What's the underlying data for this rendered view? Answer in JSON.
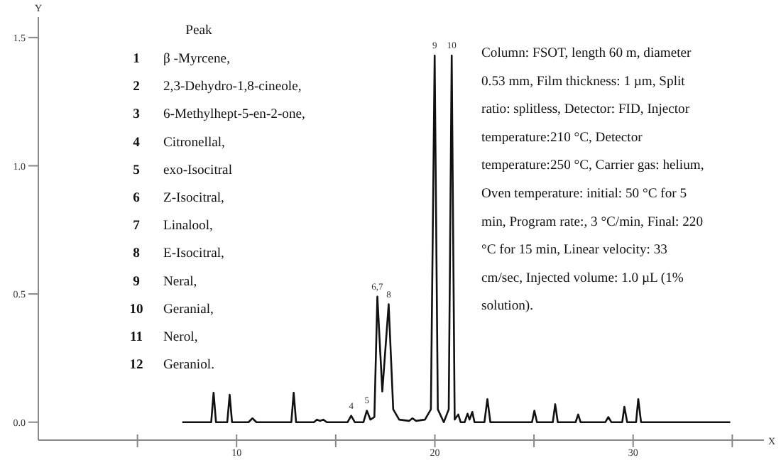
{
  "chart_data": {
    "type": "line",
    "xlabel": "X",
    "ylabel": "Y",
    "xlim": [
      0,
      36.6
    ],
    "ylim": [
      -0.07,
      1.58
    ],
    "xticks": [
      {
        "value": 5,
        "label": null
      },
      10,
      {
        "value": 15,
        "label": null
      },
      20,
      {
        "value": 25,
        "label": null
      },
      30,
      {
        "value": 35,
        "label": null
      }
    ],
    "yticks": [
      {
        "value": 0,
        "label": "0.0"
      },
      0.5,
      {
        "value": 1,
        "label": "1.0"
      },
      1.5
    ],
    "grid": false,
    "marker": "none",
    "line_style": "solid",
    "series": [
      {
        "color": "#111111",
        "x": [
          7.26,
          8.72,
          8.84,
          8.96,
          9.53,
          9.65,
          9.77,
          10.6,
          10.8,
          11.0,
          12.76,
          12.88,
          13.0,
          13.9,
          14.06,
          14.2,
          14.37,
          14.55,
          15.6,
          15.78,
          15.96,
          16.4,
          16.57,
          16.75,
          16.95,
          17.1,
          17.35,
          17.67,
          17.9,
          18.2,
          18.7,
          18.87,
          19.05,
          19.5,
          19.8,
          19.99,
          20.15,
          20.45,
          20.7,
          20.85,
          21.0,
          21.18,
          21.3,
          21.5,
          21.65,
          21.75,
          21.89,
          22.0,
          22.5,
          22.65,
          22.8,
          24.9,
          25.02,
          25.15,
          25.95,
          26.07,
          26.2,
          27.1,
          27.23,
          27.35,
          28.6,
          28.75,
          28.9,
          29.45,
          29.56,
          29.7,
          30.15,
          30.26,
          30.4,
          34.9
        ],
        "values": [
          0,
          0,
          0.115,
          0,
          0,
          0.107,
          0,
          0,
          0.015,
          0,
          0,
          0.115,
          0,
          0,
          0.01,
          0.005,
          0.01,
          0,
          0,
          0.025,
          0,
          0,
          0.045,
          0.01,
          0.02,
          0.49,
          0.12,
          0.46,
          0.05,
          0.01,
          0.005,
          0.015,
          0.005,
          0.01,
          0.05,
          1.43,
          0.05,
          0,
          0.05,
          1.43,
          0.01,
          0.03,
          0,
          0,
          0.033,
          0.01,
          0.04,
          0,
          0,
          0.09,
          0,
          0,
          0.045,
          0,
          0,
          0.07,
          0,
          0,
          0.03,
          0,
          0,
          0.02,
          0,
          0,
          0.06,
          0,
          0,
          0.09,
          0,
          0
        ]
      }
    ],
    "annotations": [
      "Peak",
      "1 β -Myrcene,",
      "2 2,3-Dehydro-1,8-cineole,",
      "3 6-Methylhept-5-en-2-one,",
      "4 Citronellal,",
      "5 exo-Isocitral",
      "6 Z-Isocitral,",
      "7 Linalool,",
      "8 E-Isocitral,",
      "9 Neral,",
      "10 Geranial,",
      "11 Nerol,",
      "12 Geraniol.",
      "Column: FSOT, length 60 m, diameter 0.53 mm, Film thickness: 1 µm, Split ratio: splitless, Detector: FID, Injector temperature:210 °C, Detector temperature:250 °C, Carrier gas: helium, Oven temperature: initial: 50 °C for 5 min, Program rate:, 3 °C/min, Final: 220 °C for 15 min, Linear velocity: 33 cm/sec, Injected volume: 1.0 µL (1% solution).",
      {
        "text": "4",
        "x": 15.78,
        "y": 0.025
      },
      {
        "text": "5",
        "x": 16.57,
        "y": 0.045
      },
      {
        "text": "6,7",
        "x": 17.1,
        "y": 0.49
      },
      {
        "text": "8",
        "x": 17.67,
        "y": 0.46
      },
      {
        "text": "9",
        "x": 19.99,
        "y": 1.43
      },
      {
        "text": "10",
        "x": 20.85,
        "y": 1.43
      }
    ]
  }
}
